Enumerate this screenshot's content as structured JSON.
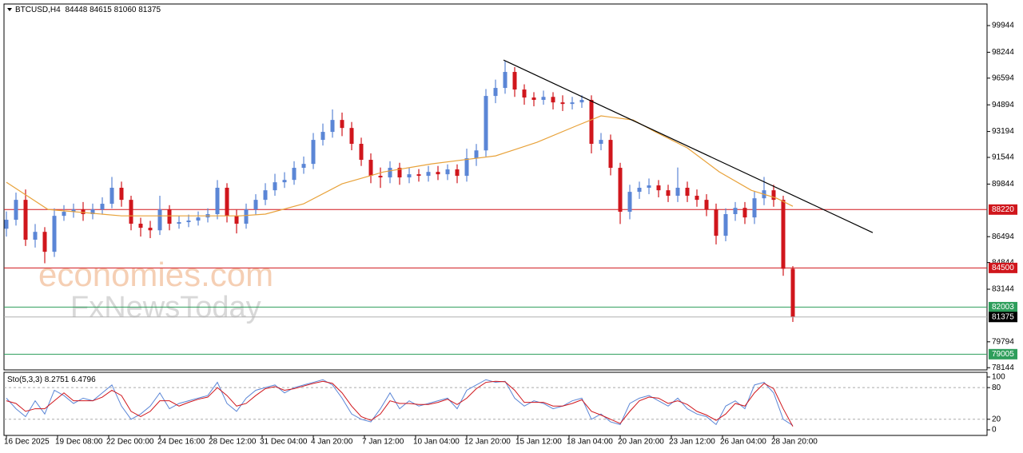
{
  "chart_data": [
    {
      "type": "candlestick",
      "symbol": "BTCUSD,H4",
      "watermark": [
        "economies.com",
        "FxNewsToday"
      ],
      "x": [
        0,
        3,
        6,
        9,
        12,
        15,
        18,
        21,
        24,
        27,
        30,
        33,
        36,
        39,
        42,
        45,
        48,
        51,
        54,
        57,
        60,
        63,
        66,
        69,
        72,
        75,
        78,
        81,
        84,
        87,
        90,
        93,
        96,
        99,
        102,
        105,
        108,
        111,
        114,
        117,
        120,
        123,
        126,
        129,
        132,
        135,
        138,
        141,
        144,
        147,
        150,
        153,
        156,
        159,
        162,
        165,
        168,
        171,
        174,
        177,
        180,
        183,
        186,
        189,
        192,
        195,
        198,
        201,
        204,
        207,
        210,
        213,
        216,
        219,
        222,
        225,
        228,
        231,
        234,
        237,
        240,
        243,
        246
      ],
      "open": [
        87000,
        87570,
        88840,
        86300,
        86800,
        85530,
        87820,
        88080,
        88230,
        87930,
        88230,
        88590,
        89610,
        88840,
        87320,
        87060,
        86900,
        88230,
        87320,
        87420,
        87520,
        87720,
        87930,
        89610,
        87820,
        87320,
        88230,
        88840,
        89450,
        89960,
        90110,
        90880,
        91130,
        92660,
        93170,
        93930,
        93420,
        92410,
        91390,
        90370,
        90270,
        90880,
        90270,
        90470,
        90370,
        90620,
        90470,
        90780,
        90370,
        91490,
        91990,
        95460,
        95970,
        96990,
        95870,
        95360,
        95210,
        95400,
        95050,
        94950,
        95050,
        95210,
        92410,
        92660,
        90880,
        88080,
        89350,
        89610,
        89760,
        89450,
        89100,
        89610,
        89100,
        88840,
        88230,
        86550,
        87930,
        88330,
        87720,
        88940,
        89450,
        88840,
        84448
      ],
      "high": [
        88100,
        89300,
        89500,
        87300,
        87100,
        88300,
        88500,
        88600,
        88700,
        88600,
        89000,
        90300,
        90000,
        89100,
        87700,
        87500,
        89100,
        88500,
        87800,
        87900,
        88100,
        88300,
        90100,
        89900,
        88200,
        88600,
        89200,
        89900,
        90500,
        90600,
        91300,
        91600,
        93100,
        93700,
        94600,
        94400,
        93800,
        92800,
        91800,
        90900,
        91300,
        91200,
        90900,
        90800,
        91000,
        91000,
        91100,
        91100,
        92100,
        92400,
        95900,
        96500,
        97700,
        97300,
        96200,
        95700,
        95800,
        95700,
        95500,
        95400,
        95500,
        95500,
        93100,
        93000,
        91200,
        89800,
        90000,
        90200,
        90100,
        89800,
        90900,
        90000,
        89500,
        89200,
        88600,
        88300,
        88700,
        88700,
        89400,
        90300,
        89800,
        89100,
        84615
      ],
      "low": [
        86500,
        87200,
        85900,
        85800,
        84800,
        85200,
        87500,
        87700,
        87500,
        87600,
        87900,
        88300,
        88400,
        86900,
        86500,
        86400,
        86600,
        86900,
        87000,
        87100,
        87200,
        87400,
        87600,
        87400,
        86700,
        87000,
        87900,
        88500,
        89100,
        89600,
        89800,
        90500,
        90800,
        92300,
        92800,
        92900,
        92000,
        91000,
        89900,
        89600,
        89900,
        89800,
        89900,
        90000,
        90000,
        90100,
        90100,
        89900,
        90000,
        91000,
        91600,
        95000,
        95600,
        95400,
        94900,
        94800,
        94900,
        94600,
        94500,
        94600,
        94700,
        91800,
        92000,
        90400,
        87300,
        87600,
        88900,
        89200,
        89000,
        88700,
        88700,
        88700,
        88400,
        87800,
        86000,
        86200,
        87500,
        87300,
        87300,
        88500,
        88400,
        84000,
        81060
      ],
      "close": [
        87570,
        88840,
        86300,
        86800,
        85530,
        87820,
        88080,
        88230,
        87930,
        88230,
        88590,
        89610,
        88840,
        87320,
        87060,
        86900,
        88230,
        87320,
        87420,
        87520,
        87720,
        87930,
        89610,
        87820,
        87320,
        88230,
        88840,
        89450,
        89960,
        90110,
        90880,
        91130,
        92660,
        93170,
        93930,
        93420,
        92410,
        91390,
        90370,
        90270,
        90880,
        90270,
        90470,
        90370,
        90620,
        90470,
        90780,
        90370,
        91490,
        91990,
        95460,
        95970,
        96990,
        95870,
        95360,
        95210,
        95400,
        95050,
        94950,
        95050,
        95210,
        92410,
        92660,
        90880,
        88080,
        89350,
        89610,
        89760,
        89450,
        89100,
        89610,
        89100,
        88840,
        88230,
        86550,
        87930,
        88330,
        87720,
        88940,
        89450,
        88840,
        84448,
        81375
      ],
      "up_color": "#5b86d6",
      "down_color": "#d0161c",
      "ma": {
        "color": "#e8a23a",
        "x": [
          0,
          13,
          36,
          73,
          81,
          93,
          105,
          118,
          133,
          143,
          153,
          166,
          178,
          186,
          196,
          203,
          213,
          223,
          233,
          241,
          246
        ],
        "values": [
          89960,
          88230,
          87820,
          87820,
          87930,
          88590,
          89860,
          90620,
          91130,
          91390,
          91640,
          92510,
          93530,
          94190,
          93930,
          93170,
          92150,
          90620,
          89450,
          88940,
          88430
        ]
      },
      "trendline": {
        "color": "#000000",
        "x": [
          155.5,
          271
        ],
        "values": [
          97750,
          86750
        ]
      },
      "levels": [
        {
          "value": 88220,
          "color": "#d0161c"
        },
        {
          "value": 84500,
          "color": "#d0161c"
        },
        {
          "value": 82003,
          "color": "#2e9e5b"
        },
        {
          "value": 79005,
          "color": "#2e9e5b"
        }
      ],
      "xlim": [
        -0.75,
        306.75
      ],
      "xticks": [
        {
          "value": 0,
          "label": "16 Dec 2025"
        },
        {
          "value": 16,
          "label": "19 Dec 08:00"
        },
        {
          "value": 32,
          "label": "22 Dec 00:00"
        },
        {
          "value": 48,
          "label": "24 Dec 16:00"
        },
        {
          "value": 64,
          "label": "28 Dec 12:00"
        },
        {
          "value": 80,
          "label": "31 Dec 04:00"
        },
        {
          "value": 96,
          "label": "4 Jan 20:00"
        },
        {
          "value": 112,
          "label": "7 Jan 12:00"
        },
        {
          "value": 128,
          "label": "10 Jan 04:00"
        },
        {
          "value": 144,
          "label": "12 Jan 20:00"
        },
        {
          "value": 160,
          "label": "15 Jan 12:00"
        },
        {
          "value": 176,
          "label": "18 Jan 04:00"
        },
        {
          "value": 192,
          "label": "20 Jan 20:00"
        },
        {
          "value": 208,
          "label": "23 Jan 12:00"
        },
        {
          "value": 224,
          "label": "26 Jan 04:00"
        },
        {
          "value": 240,
          "label": "28 Jan 20:00"
        }
      ],
      "ylim": [
        78003,
        101319
      ],
      "yticks": [
        99944,
        98244,
        96594,
        94894,
        93194,
        91544,
        89844,
        86494,
        84844,
        83144,
        79794,
        78144
      ]
    },
    {
      "type": "line",
      "title": "Sto(5,3,3)",
      "x": [
        0,
        3,
        6,
        9,
        12,
        15,
        18,
        21,
        24,
        27,
        30,
        33,
        36,
        39,
        42,
        45,
        48,
        51,
        54,
        57,
        60,
        63,
        66,
        69,
        72,
        75,
        78,
        81,
        84,
        87,
        90,
        93,
        96,
        99,
        102,
        105,
        108,
        111,
        114,
        117,
        120,
        123,
        126,
        129,
        132,
        135,
        138,
        141,
        144,
        147,
        150,
        153,
        156,
        159,
        162,
        165,
        168,
        171,
        174,
        177,
        180,
        183,
        186,
        189,
        192,
        195,
        198,
        201,
        204,
        207,
        210,
        213,
        216,
        219,
        222,
        225,
        228,
        231,
        234,
        237,
        240,
        243,
        246
      ],
      "series": [
        {
          "color": "#5b86d6",
          "values": [
            60,
            40,
            25,
            55,
            30,
            75,
            65,
            50,
            60,
            55,
            70,
            85,
            45,
            20,
            30,
            45,
            70,
            40,
            50,
            55,
            60,
            65,
            90,
            50,
            35,
            60,
            75,
            80,
            85,
            70,
            80,
            85,
            90,
            95,
            85,
            60,
            30,
            20,
            15,
            40,
            70,
            40,
            55,
            45,
            50,
            55,
            60,
            40,
            75,
            85,
            95,
            90,
            92,
            60,
            45,
            55,
            50,
            40,
            45,
            55,
            60,
            20,
            30,
            15,
            10,
            50,
            60,
            65,
            55,
            45,
            60,
            40,
            30,
            25,
            10,
            45,
            55,
            40,
            85,
            90,
            70,
            20,
            8.2751
          ]
        },
        {
          "color": "#d0161c",
          "values": [
            55,
            50,
            35,
            40,
            40,
            55,
            70,
            55,
            55,
            55,
            62,
            75,
            65,
            35,
            25,
            35,
            55,
            55,
            45,
            52,
            58,
            62,
            80,
            65,
            45,
            50,
            65,
            78,
            82,
            75,
            78,
            83,
            88,
            92,
            88,
            70,
            45,
            25,
            18,
            30,
            55,
            50,
            50,
            48,
            48,
            52,
            58,
            48,
            60,
            78,
            90,
            92,
            91,
            75,
            52,
            52,
            52,
            45,
            45,
            50,
            57,
            35,
            28,
            20,
            12,
            35,
            55,
            62,
            60,
            50,
            55,
            48,
            35,
            28,
            18,
            30,
            50,
            45,
            70,
            88,
            78,
            40,
            6.4796
          ]
        }
      ],
      "levels": [
        80,
        20
      ],
      "xlim": [
        -0.75,
        306.75
      ],
      "ylim": [
        -10.6,
        109
      ],
      "yticks": [
        100,
        80,
        20,
        0
      ]
    }
  ]
}
